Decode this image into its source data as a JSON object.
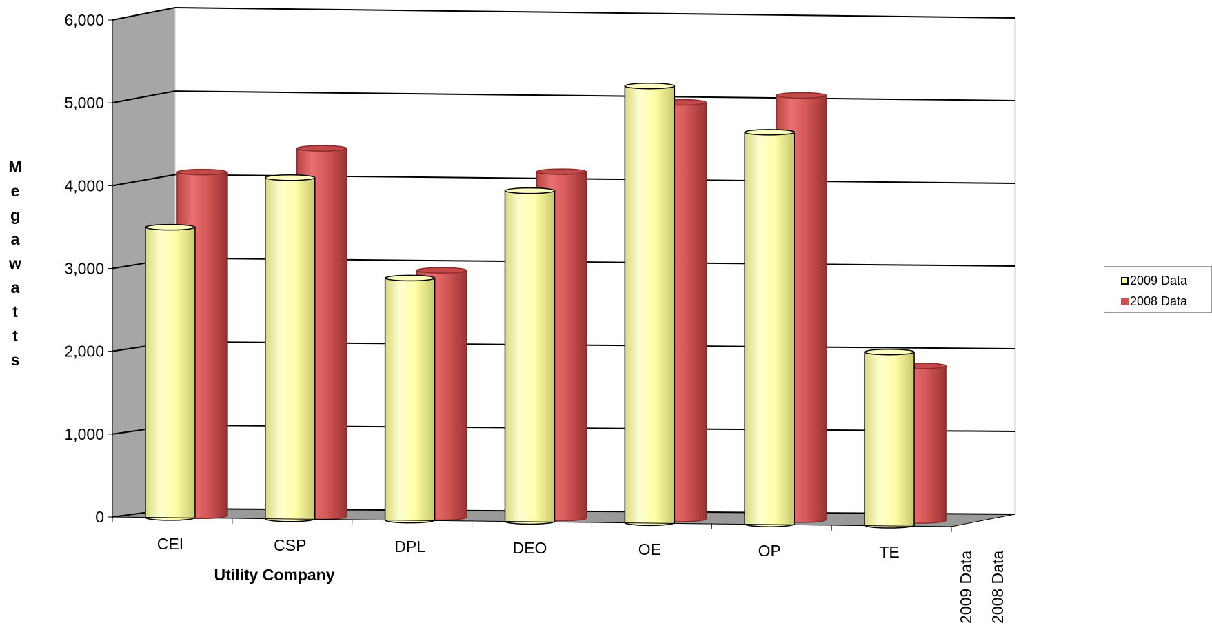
{
  "chart_data": {
    "type": "bar",
    "style": "3d-cylinder",
    "xlabel": "Utility Company",
    "ylabel": "Megawatts",
    "ylim": [
      0,
      6000
    ],
    "yticks": [
      "0",
      "1,000",
      "2,000",
      "3,000",
      "4,000",
      "5,000",
      "6,000"
    ],
    "categories": [
      "CEI",
      "CSP",
      "DPL",
      "DEO",
      "OE",
      "OP",
      "TE"
    ],
    "series": [
      {
        "name": "2009 Data",
        "color": "#FFFFA0",
        "values": [
          3500,
          4100,
          2900,
          3950,
          5200,
          4650,
          2050
        ]
      },
      {
        "name": "2008 Data",
        "color": "#D05050",
        "values": [
          4050,
          4350,
          2900,
          4100,
          4950,
          5050,
          1800
        ]
      }
    ],
    "depth_axis_labels": [
      "2009 Data",
      "2008 Data"
    ],
    "grid": true,
    "legend_position": "right"
  }
}
